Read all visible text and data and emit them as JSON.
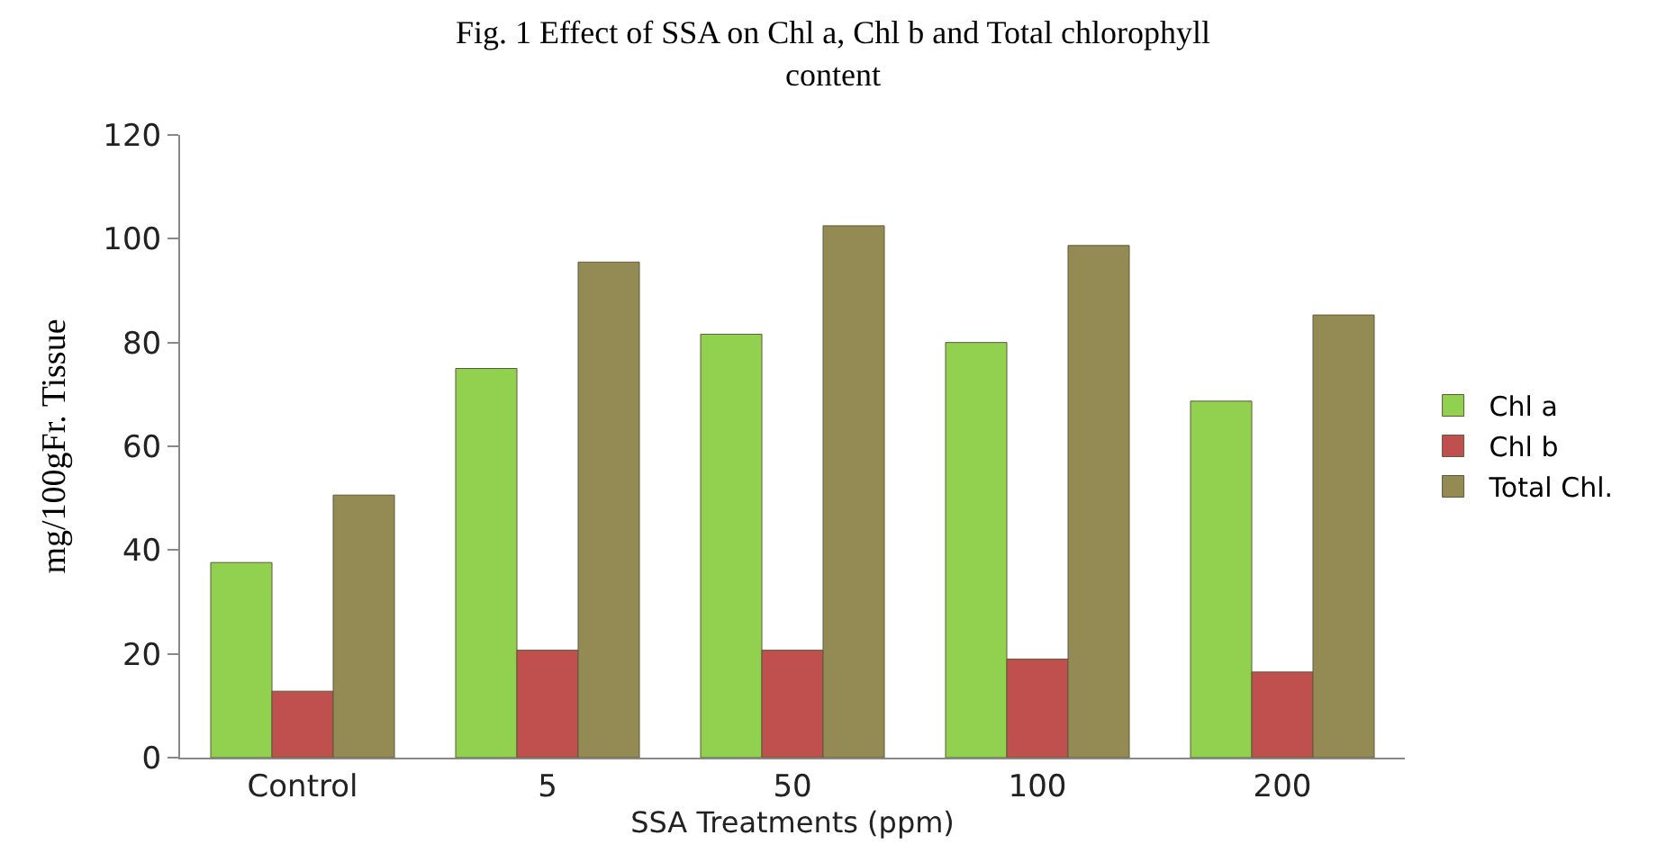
{
  "chart_data": {
    "type": "bar",
    "title": "Fig. 1 Effect of SSA on Chl a, Chl b and Total chlorophyll content",
    "xlabel": "SSA Treatments (ppm)",
    "ylabel": "mg/100gFr. Tissue",
    "categories": [
      "Control",
      "5",
      "50",
      "100",
      "200"
    ],
    "series": [
      {
        "name": "Chl a",
        "color": "#92d050",
        "values": [
          37.6,
          75.0,
          81.6,
          80.0,
          68.7
        ]
      },
      {
        "name": "Chl b",
        "color": "#c0504d",
        "values": [
          12.8,
          20.7,
          20.7,
          19.0,
          16.5
        ]
      },
      {
        "name": "Total Chl.",
        "color": "#948a54",
        "values": [
          50.6,
          95.5,
          102.5,
          98.7,
          85.3
        ]
      }
    ],
    "ylim": [
      0,
      120
    ],
    "yticks": [
      0,
      20,
      40,
      60,
      80,
      100,
      120
    ],
    "grid": false,
    "legend": "right"
  }
}
